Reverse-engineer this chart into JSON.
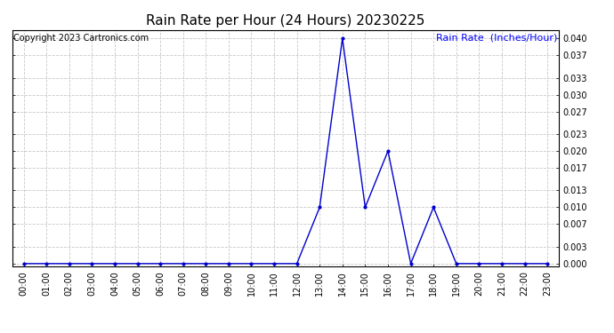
{
  "title": "Rain Rate per Hour (24 Hours) 20230225",
  "copyright_text": "Copyright 2023 Cartronics.com",
  "ylabel": "Rain Rate  (Inches/Hour)",
  "ylabel_color": "#0000ff",
  "background_color": "#ffffff",
  "plot_bg_color": "#ffffff",
  "grid_color": "#c8c8c8",
  "line_color": "#0000cc",
  "marker_color": "#0000cc",
  "hours": [
    0,
    1,
    2,
    3,
    4,
    5,
    6,
    7,
    8,
    9,
    10,
    11,
    12,
    13,
    14,
    15,
    16,
    17,
    18,
    19,
    20,
    21,
    22,
    23
  ],
  "values": [
    0.0,
    0.0,
    0.0,
    0.0,
    0.0,
    0.0,
    0.0,
    0.0,
    0.0,
    0.0,
    0.0,
    0.0,
    0.0,
    0.01,
    0.04,
    0.01,
    0.02,
    0.0,
    0.01,
    0.0,
    0.0,
    0.0,
    0.0,
    0.0
  ],
  "ylim": [
    -0.0005,
    0.0415
  ],
  "yticks": [
    0.0,
    0.003,
    0.007,
    0.01,
    0.013,
    0.017,
    0.02,
    0.023,
    0.027,
    0.03,
    0.033,
    0.037,
    0.04
  ],
  "title_fontsize": 11,
  "copyright_fontsize": 7,
  "ylabel_fontsize": 8,
  "tick_fontsize": 7
}
